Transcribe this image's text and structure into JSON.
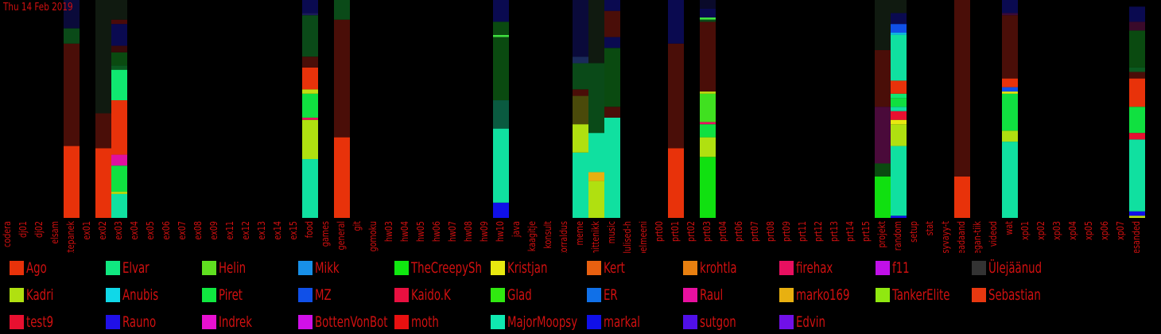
{
  "header": {
    "date": "Thu 14 Feb 2019"
  },
  "colors": {
    "background": "#000000",
    "text": "#d01010"
  },
  "chart_data": {
    "type": "bar",
    "stacked": true,
    "ylim": [
      0,
      1
    ],
    "categories": [
      "codera",
      "dj01",
      "dj02",
      "elsam",
      "ettepanek",
      "ex01",
      "ex02",
      "ex03",
      "ex04",
      "ex05",
      "ex06",
      "ex07",
      "ex08",
      "ex09",
      "ex11",
      "ex12",
      "ex13",
      "ex14",
      "ex15",
      "food",
      "games",
      "general",
      "git",
      "gomoku",
      "hw03",
      "hw04",
      "hw05",
      "hw06",
      "hw07",
      "hw08",
      "hw09",
      "hw10",
      "java",
      "kaagitje",
      "konsult",
      "korraldus",
      "meme",
      "mittenikk",
      "music",
      "olulised-h",
      "pelmeeni",
      "prt00",
      "prt01",
      "prt02",
      "prt03",
      "prt04",
      "prt06",
      "prt07",
      "prt08",
      "prt09",
      "prt11",
      "prt12",
      "prt13",
      "prt14",
      "prt15",
      "projekt",
      "random",
      "setup",
      "stat",
      "syvayy-t",
      "teadaand",
      "vegan-tiik",
      "videod",
      "wat",
      "xp01",
      "xp02",
      "xp03",
      "xp04",
      "xp05",
      "xp06",
      "xp07",
      "olesanded"
    ],
    "legend": [
      {
        "name": "Ago",
        "color": "#e8320a"
      },
      {
        "name": "Elvar",
        "color": "#10e880"
      },
      {
        "name": "Helin",
        "color": "#60e020"
      },
      {
        "name": "Mikk",
        "color": "#1890e8"
      },
      {
        "name": "TheCreepySh",
        "color": "#10e810"
      },
      {
        "name": "Kristjan",
        "color": "#e8e810"
      },
      {
        "name": "Kert",
        "color": "#e86010"
      },
      {
        "name": "krohtla",
        "color": "#e88010"
      },
      {
        "name": "firehax",
        "color": "#e81060"
      },
      {
        "name": "f11",
        "color": "#c010e8"
      },
      {
        "name": "Ülejäänud",
        "color": "#333333"
      },
      {
        "name": "Kadri",
        "color": "#b0e010"
      },
      {
        "name": "Anubis",
        "color": "#10d8e8"
      },
      {
        "name": "Piret",
        "color": "#10e840"
      },
      {
        "name": "MZ",
        "color": "#1050e8"
      },
      {
        "name": "Kaido.K",
        "color": "#e81040"
      },
      {
        "name": "Glad",
        "color": "#30e810"
      },
      {
        "name": "ER",
        "color": "#1070e8"
      },
      {
        "name": "Raul",
        "color": "#e810a0"
      },
      {
        "name": "marko169",
        "color": "#e8b010"
      },
      {
        "name": "TankerElite",
        "color": "#90e810"
      },
      {
        "name": "Sebastian",
        "color": "#e83810"
      },
      {
        "name": "test9",
        "color": "#e81030"
      },
      {
        "name": "Rauno",
        "color": "#2010e8"
      },
      {
        "name": "Indrek",
        "color": "#e810d0"
      },
      {
        "name": "BottenVonBot",
        "color": "#d010e8"
      },
      {
        "name": "moth",
        "color": "#e81010"
      },
      {
        "name": "MajorMoopsy",
        "color": "#10e8b0"
      },
      {
        "name": "markal",
        "color": "#1010e8"
      },
      {
        "name": "sutgon",
        "color": "#5010e8"
      },
      {
        "name": "Edvin",
        "color": "#7010e8"
      }
    ],
    "bars": [
      {
        "cat": "ettepanek",
        "segments": [
          {
            "v": 0.33,
            "c": "#e8320a"
          },
          {
            "v": 0.47,
            "c": "#4a0e08"
          },
          {
            "v": 0.07,
            "c": "#0a4a18"
          },
          {
            "v": 0.13,
            "c": "#0a0a3a"
          }
        ]
      },
      {
        "cat": "ex02",
        "segments": [
          {
            "v": 0.32,
            "c": "#e8320a"
          },
          {
            "v": 0.16,
            "c": "#4a0e08"
          },
          {
            "v": 0.52,
            "c": "#101a10"
          }
        ]
      },
      {
        "cat": "ex03",
        "segments": [
          {
            "v": 0.11,
            "c": "#10e0a0"
          },
          {
            "v": 0.01,
            "c": "#c0e010"
          },
          {
            "v": 0.12,
            "c": "#10e040"
          },
          {
            "v": 0.05,
            "c": "#e010a0"
          },
          {
            "v": 0.25,
            "c": "#e8320a"
          },
          {
            "v": 0.14,
            "c": "#10e870"
          },
          {
            "v": 0.02,
            "c": "#0a5a20"
          },
          {
            "v": 0.06,
            "c": "#0a4a10"
          },
          {
            "v": 0.03,
            "c": "#3a0a0a"
          },
          {
            "v": 0.1,
            "c": "#0a0a50"
          },
          {
            "v": 0.02,
            "c": "#4a0a0a"
          },
          {
            "v": 0.09,
            "c": "#101a10"
          }
        ]
      },
      {
        "cat": "food",
        "segments": [
          {
            "v": 0.27,
            "c": "#10e0a0"
          },
          {
            "v": 0.18,
            "c": "#b0e010"
          },
          {
            "v": 0.01,
            "c": "#e81060"
          },
          {
            "v": 0.11,
            "c": "#10e040"
          },
          {
            "v": 0.02,
            "c": "#c0e010"
          },
          {
            "v": 0.1,
            "c": "#e8320a"
          },
          {
            "v": 0.05,
            "c": "#4a0e08"
          },
          {
            "v": 0.19,
            "c": "#0a4a18"
          },
          {
            "v": 0.01,
            "c": "#1a1a5a"
          },
          {
            "v": 0.06,
            "c": "#0a0a50"
          }
        ]
      },
      {
        "cat": "general",
        "segments": [
          {
            "v": 0.37,
            "c": "#e8320a"
          },
          {
            "v": 0.54,
            "c": "#4a0e08"
          },
          {
            "v": 0.09,
            "c": "#0a4a18"
          }
        ]
      },
      {
        "cat": "hw10",
        "segments": [
          {
            "v": 0.07,
            "c": "#1010e8"
          },
          {
            "v": 0.34,
            "c": "#10e0a0"
          },
          {
            "v": 0.13,
            "c": "#0a5a40"
          },
          {
            "v": 0.29,
            "c": "#0a4a10"
          },
          {
            "v": 0.01,
            "c": "#40e040"
          },
          {
            "v": 0.06,
            "c": "#0a4a10"
          },
          {
            "v": 0.1,
            "c": "#0a0a50"
          }
        ]
      },
      {
        "cat": "meme",
        "segments": [
          {
            "v": 0.3,
            "c": "#10e0a0"
          },
          {
            "v": 0.13,
            "c": "#b0e010"
          },
          {
            "v": 0.13,
            "c": "#4a4a0a"
          },
          {
            "v": 0.03,
            "c": "#4a0e08"
          },
          {
            "v": 0.12,
            "c": "#0a4a18"
          },
          {
            "v": 0.03,
            "c": "#1a2a5a"
          },
          {
            "v": 0.26,
            "c": "#0a0a3a"
          }
        ]
      },
      {
        "cat": "mittenikk",
        "segments": [
          {
            "v": 0.17,
            "c": "#b0e010"
          },
          {
            "v": 0.04,
            "c": "#e8b010"
          },
          {
            "v": 0.18,
            "c": "#10e0a0"
          },
          {
            "v": 0.32,
            "c": "#0a4a18"
          },
          {
            "v": 0.29,
            "c": "#101a10"
          }
        ]
      },
      {
        "cat": "music",
        "segments": [
          {
            "v": 0.46,
            "c": "#10e0a0"
          },
          {
            "v": 0.05,
            "c": "#4a0e08"
          },
          {
            "v": 0.27,
            "c": "#0a4a10"
          },
          {
            "v": 0.05,
            "c": "#0a0a50"
          },
          {
            "v": 0.12,
            "c": "#4a0e08"
          },
          {
            "v": 0.05,
            "c": "#0a0a50"
          }
        ]
      },
      {
        "cat": "prt01",
        "segments": [
          {
            "v": 0.32,
            "c": "#e8320a"
          },
          {
            "v": 0.48,
            "c": "#4a0e08"
          },
          {
            "v": 0.2,
            "c": "#0a0a50"
          }
        ]
      },
      {
        "cat": "prt03",
        "segments": [
          {
            "v": 0.28,
            "c": "#10e010"
          },
          {
            "v": 0.09,
            "c": "#b0e010"
          },
          {
            "v": 0.06,
            "c": "#10e040"
          },
          {
            "v": 0.01,
            "c": "#e81060"
          },
          {
            "v": 0.13,
            "c": "#40e020"
          },
          {
            "v": 0.01,
            "c": "#c0e010"
          },
          {
            "v": 0.32,
            "c": "#4a0e08"
          },
          {
            "v": 0.01,
            "c": "#0a4a18"
          },
          {
            "v": 0.01,
            "c": "#40e040"
          },
          {
            "v": 0.04,
            "c": "#0a0a50"
          },
          {
            "v": 0.05,
            "c": "#0a0a2a"
          }
        ]
      },
      {
        "cat": "projekt",
        "segments": [
          {
            "v": 0.19,
            "c": "#10e010"
          },
          {
            "v": 0.06,
            "c": "#0a4a10"
          },
          {
            "v": 0.26,
            "c": "#4a0a3a"
          },
          {
            "v": 0.26,
            "c": "#4a0e08"
          },
          {
            "v": 0.23,
            "c": "#101a10"
          }
        ]
      },
      {
        "cat": "random",
        "segments": [
          {
            "v": 0.01,
            "c": "#1010e8"
          },
          {
            "v": 0.32,
            "c": "#10e0a0"
          },
          {
            "v": 0.1,
            "c": "#b0e010"
          },
          {
            "v": 0.02,
            "c": "#e8e810"
          },
          {
            "v": 0.04,
            "c": "#e81030"
          },
          {
            "v": 0.02,
            "c": "#10e0a0"
          },
          {
            "v": 0.04,
            "c": "#10e040"
          },
          {
            "v": 0.02,
            "c": "#10e870"
          },
          {
            "v": 0.06,
            "c": "#e8320a"
          },
          {
            "v": 0.21,
            "c": "#10e0a0"
          },
          {
            "v": 0.01,
            "c": "#10c0e8"
          },
          {
            "v": 0.04,
            "c": "#1050e8"
          },
          {
            "v": 0.05,
            "c": "#0a0a50"
          },
          {
            "v": 0.06,
            "c": "#101a10"
          }
        ]
      },
      {
        "cat": "teadaand",
        "segments": [
          {
            "v": 0.19,
            "c": "#e8320a"
          },
          {
            "v": 0.81,
            "c": "#4a0e08"
          }
        ]
      },
      {
        "cat": "wat",
        "segments": [
          {
            "v": 0.35,
            "c": "#10e0a0"
          },
          {
            "v": 0.05,
            "c": "#b0e010"
          },
          {
            "v": 0.17,
            "c": "#10e040"
          },
          {
            "v": 0.01,
            "c": "#e8e810"
          },
          {
            "v": 0.02,
            "c": "#1050e8"
          },
          {
            "v": 0.04,
            "c": "#e8320a"
          },
          {
            "v": 0.29,
            "c": "#4a0e08"
          },
          {
            "v": 0.01,
            "c": "#3a0a3a"
          },
          {
            "v": 0.06,
            "c": "#0a0a50"
          }
        ]
      },
      {
        "cat": "olesanded",
        "segments": [
          {
            "v": 0.01,
            "c": "#c0e010"
          },
          {
            "v": 0.02,
            "c": "#1010e8"
          },
          {
            "v": 0.33,
            "c": "#10e0a0"
          },
          {
            "v": 0.03,
            "c": "#e81030"
          },
          {
            "v": 0.12,
            "c": "#10e040"
          },
          {
            "v": 0.13,
            "c": "#e8320a"
          },
          {
            "v": 0.03,
            "c": "#4a0e08"
          },
          {
            "v": 0.02,
            "c": "#0a5a20"
          },
          {
            "v": 0.17,
            "c": "#0a4a10"
          },
          {
            "v": 0.04,
            "c": "#3a0a2a"
          },
          {
            "v": 0.07,
            "c": "#0a0a50"
          },
          {
            "v": 0.03,
            "c": "#000000"
          }
        ]
      }
    ]
  }
}
